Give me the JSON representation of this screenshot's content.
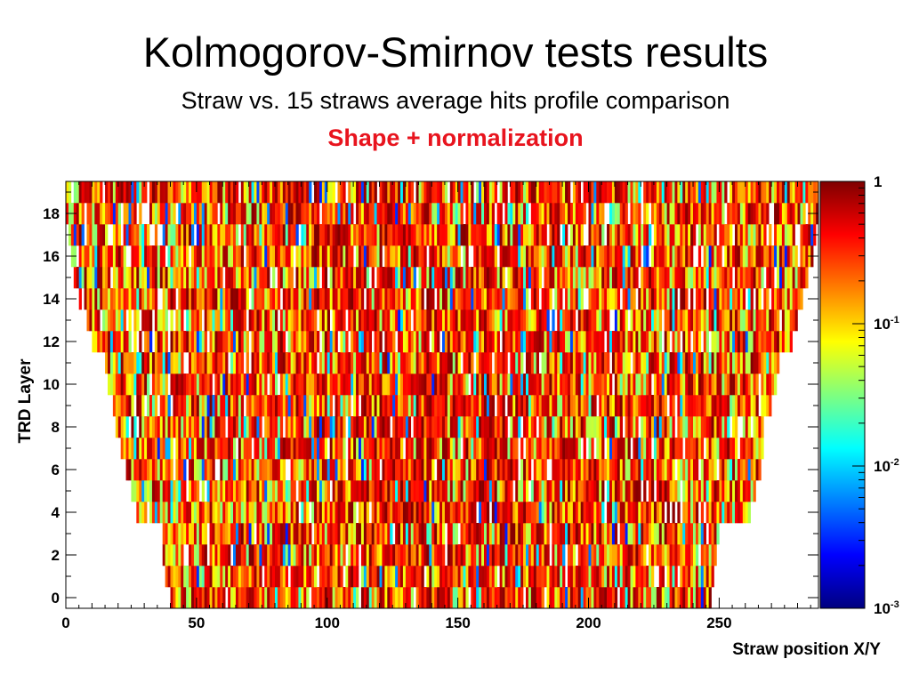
{
  "page": {
    "title": "Kolmogorov-Smirnov tests results",
    "subtitle": "Straw vs. 15 straws average hits profile comparison",
    "note": "Shape + normalization",
    "note_color": "#e8141e"
  },
  "chart_data": {
    "type": "heatmap",
    "xlabel": "Straw position X/Y",
    "ylabel": "TRD Layer",
    "xlim": [
      0,
      288
    ],
    "ylim": [
      -0.5,
      19.5
    ],
    "x_ticks": [
      0,
      50,
      100,
      150,
      200,
      250
    ],
    "y_ticks": [
      0,
      2,
      4,
      6,
      8,
      10,
      12,
      14,
      16,
      18
    ],
    "colorbar": {
      "scale": "log",
      "range": [
        0.001,
        1
      ],
      "ticks": [
        {
          "value": 1,
          "mantissa": "1",
          "exponent": ""
        },
        {
          "value": 0.1,
          "mantissa": "10",
          "exponent": "-1"
        },
        {
          "value": 0.01,
          "mantissa": "10",
          "exponent": "-2"
        },
        {
          "value": 0.001,
          "mantissa": "10",
          "exponent": "-3"
        }
      ],
      "palette": [
        "#00007f",
        "#0000ff",
        "#007fff",
        "#00ffff",
        "#7fff7f",
        "#ffff00",
        "#ff7f00",
        "#ff0000",
        "#7f0000"
      ]
    },
    "layer_straw_ranges": [
      {
        "layer": 0,
        "x_min": 40,
        "x_max": 247
      },
      {
        "layer": 1,
        "x_min": 38,
        "x_max": 248
      },
      {
        "layer": 2,
        "x_min": 37,
        "x_max": 249
      },
      {
        "layer": 3,
        "x_min": 37,
        "x_max": 250
      },
      {
        "layer": 4,
        "x_min": 27,
        "x_max": 262
      },
      {
        "layer": 5,
        "x_min": 25,
        "x_max": 264
      },
      {
        "layer": 6,
        "x_min": 23,
        "x_max": 266
      },
      {
        "layer": 7,
        "x_min": 21,
        "x_max": 267
      },
      {
        "layer": 8,
        "x_min": 19,
        "x_max": 269
      },
      {
        "layer": 9,
        "x_min": 18,
        "x_max": 270
      },
      {
        "layer": 10,
        "x_min": 16,
        "x_max": 272
      },
      {
        "layer": 11,
        "x_min": 15,
        "x_max": 273
      },
      {
        "layer": 12,
        "x_min": 10,
        "x_max": 278
      },
      {
        "layer": 13,
        "x_min": 8,
        "x_max": 280
      },
      {
        "layer": 14,
        "x_min": 5,
        "x_max": 282
      },
      {
        "layer": 15,
        "x_min": 3,
        "x_max": 284
      },
      {
        "layer": 16,
        "x_min": 2,
        "x_max": 286
      },
      {
        "layer": 17,
        "x_min": 1,
        "x_max": 287
      },
      {
        "layer": 18,
        "x_min": 0,
        "x_max": 288
      },
      {
        "layer": 19,
        "x_min": 0,
        "x_max": 288
      }
    ]
  }
}
